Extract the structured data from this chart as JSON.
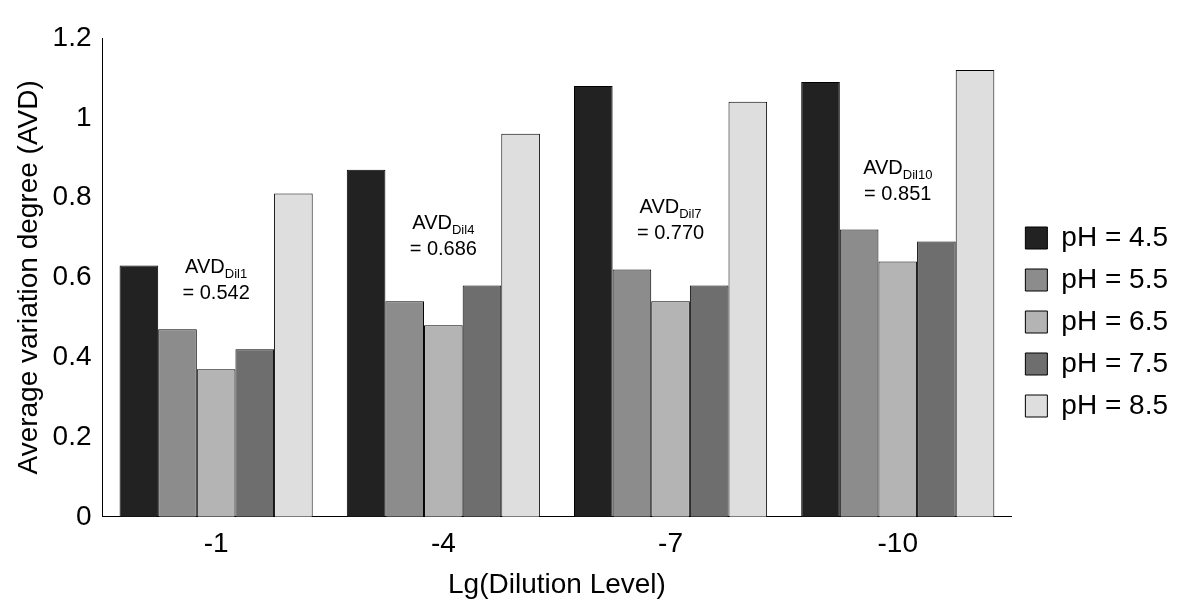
{
  "chart_data": {
    "type": "bar",
    "xlabel": "Lg(Dilution Level)",
    "ylabel": "Average variation degree (AVD)",
    "categories": [
      "-1",
      "-4",
      "-7",
      "-10"
    ],
    "series": [
      {
        "name": "pH = 4.5",
        "color": "#222222",
        "values": [
          0.63,
          0.87,
          1.08,
          1.09
        ]
      },
      {
        "name": "pH = 5.5",
        "color": "#8c8c8c",
        "values": [
          0.47,
          0.54,
          0.62,
          0.72
        ]
      },
      {
        "name": "pH = 6.5",
        "color": "#b4b4b4",
        "values": [
          0.37,
          0.48,
          0.54,
          0.64
        ]
      },
      {
        "name": "pH = 7.5",
        "color": "#6e6e6e",
        "values": [
          0.42,
          0.58,
          0.58,
          0.69
        ]
      },
      {
        "name": "pH = 8.5",
        "color": "#dedede",
        "values": [
          0.81,
          0.96,
          1.04,
          1.12
        ]
      }
    ],
    "ylim": [
      0,
      1.2
    ],
    "yticks": [
      0,
      0.2,
      0.4,
      0.6,
      0.8,
      1,
      1.2
    ],
    "grid": false,
    "legend": "right",
    "annotations": [
      "AVD$_{Dil1}$\n= 0.542",
      "AVD$_{Dil4}$\n= 0.686",
      "AVD$_{Dil7}$\n= 0.770",
      "AVD$_{Dil10}$\n= 0.851"
    ]
  }
}
